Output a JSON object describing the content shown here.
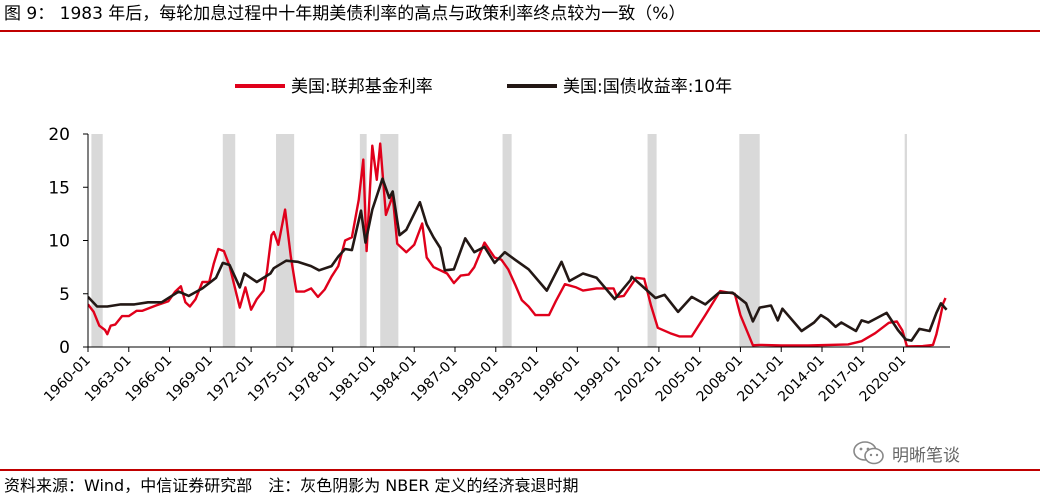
{
  "figure": {
    "title": "图 9： 1983 年后，每轮加息过程中十年期美债利率的高点与政策利率终点较为一致（%）",
    "source": "资料来源：Wind，中信证券研究部　注：灰色阴影为 NBER 定义的经济衰退时期",
    "watermark": "明晰笔谈"
  },
  "colors": {
    "rule": "#c00000",
    "fed": "#e0001b",
    "ust": "#231815",
    "recession": "#d9d9d9"
  },
  "chart_data": {
    "type": "line",
    "ylim": [
      0,
      20
    ],
    "yticks": [
      "0",
      "5",
      "10",
      "15",
      "20"
    ],
    "xlim": [
      "1960-01",
      "2023-06"
    ],
    "xticks": [
      "1960-01",
      "1963-01",
      "1966-01",
      "1969-01",
      "1972-01",
      "1975-01",
      "1978-01",
      "1981-01",
      "1984-01",
      "1987-01",
      "1990-01",
      "1993-01",
      "1996-01",
      "1999-01",
      "2002-01",
      "2005-01",
      "2008-01",
      "2011-01",
      "2014-01",
      "2017-01",
      "2020-01"
    ],
    "legend_position": "top",
    "grid": false,
    "recessions": [
      {
        "start": "1960-04",
        "end": "1961-02"
      },
      {
        "start": "1969-12",
        "end": "1970-11"
      },
      {
        "start": "1973-11",
        "end": "1975-03"
      },
      {
        "start": "1980-01",
        "end": "1980-07"
      },
      {
        "start": "1981-07",
        "end": "1982-11"
      },
      {
        "start": "1990-07",
        "end": "1991-03"
      },
      {
        "start": "2001-03",
        "end": "2001-11"
      },
      {
        "start": "2007-12",
        "end": "2009-06"
      },
      {
        "start": "2020-02",
        "end": "2020-04"
      }
    ],
    "series": [
      {
        "name": "美国:联邦基金利率",
        "points": [
          [
            "1960-01",
            4.0
          ],
          [
            "1960-06",
            3.3
          ],
          [
            "1960-11",
            2.0
          ],
          [
            "1961-04",
            1.6
          ],
          [
            "1961-06",
            1.2
          ],
          [
            "1961-09",
            2.0
          ],
          [
            "1962-01",
            2.1
          ],
          [
            "1962-07",
            2.9
          ],
          [
            "1963-01",
            2.9
          ],
          [
            "1963-08",
            3.4
          ],
          [
            "1964-01",
            3.4
          ],
          [
            "1965-01",
            3.9
          ],
          [
            "1965-12",
            4.3
          ],
          [
            "1966-06",
            5.2
          ],
          [
            "1966-11",
            5.7
          ],
          [
            "1967-03",
            4.2
          ],
          [
            "1967-07",
            3.8
          ],
          [
            "1967-12",
            4.5
          ],
          [
            "1968-06",
            6.1
          ],
          [
            "1968-12",
            6.1
          ],
          [
            "1969-04",
            7.8
          ],
          [
            "1969-08",
            9.2
          ],
          [
            "1970-01",
            9.0
          ],
          [
            "1970-06",
            7.6
          ],
          [
            "1970-12",
            5.0
          ],
          [
            "1971-03",
            3.7
          ],
          [
            "1971-08",
            5.6
          ],
          [
            "1972-01",
            3.5
          ],
          [
            "1972-06",
            4.5
          ],
          [
            "1972-12",
            5.3
          ],
          [
            "1973-03",
            7.1
          ],
          [
            "1973-07",
            10.5
          ],
          [
            "1973-09",
            10.8
          ],
          [
            "1974-01",
            9.6
          ],
          [
            "1974-07",
            12.9
          ],
          [
            "1974-12",
            8.5
          ],
          [
            "1975-05",
            5.2
          ],
          [
            "1975-12",
            5.2
          ],
          [
            "1976-06",
            5.5
          ],
          [
            "1976-12",
            4.7
          ],
          [
            "1977-06",
            5.4
          ],
          [
            "1977-12",
            6.6
          ],
          [
            "1978-06",
            7.6
          ],
          [
            "1978-12",
            10.0
          ],
          [
            "1979-06",
            10.3
          ],
          [
            "1979-12",
            13.8
          ],
          [
            "1980-04",
            17.6
          ],
          [
            "1980-07",
            9.0
          ],
          [
            "1980-12",
            18.9
          ],
          [
            "1981-04",
            15.7
          ],
          [
            "1981-07",
            19.1
          ],
          [
            "1981-12",
            12.4
          ],
          [
            "1982-06",
            14.2
          ],
          [
            "1982-10",
            9.7
          ],
          [
            "1983-06",
            8.9
          ],
          [
            "1984-01",
            9.6
          ],
          [
            "1984-08",
            11.6
          ],
          [
            "1984-12",
            8.4
          ],
          [
            "1985-06",
            7.5
          ],
          [
            "1986-06",
            6.9
          ],
          [
            "1986-12",
            6.0
          ],
          [
            "1987-06",
            6.7
          ],
          [
            "1988-01",
            6.8
          ],
          [
            "1988-06",
            7.5
          ],
          [
            "1989-03",
            9.8
          ],
          [
            "1989-12",
            8.4
          ],
          [
            "1990-06",
            8.2
          ],
          [
            "1990-12",
            7.3
          ],
          [
            "1991-06",
            5.9
          ],
          [
            "1991-12",
            4.4
          ],
          [
            "1992-06",
            3.8
          ],
          [
            "1992-12",
            3.0
          ],
          [
            "1993-12",
            3.0
          ],
          [
            "1994-06",
            4.3
          ],
          [
            "1995-02",
            5.9
          ],
          [
            "1995-12",
            5.6
          ],
          [
            "1996-06",
            5.3
          ],
          [
            "1997-06",
            5.5
          ],
          [
            "1998-09",
            5.5
          ],
          [
            "1998-12",
            4.7
          ],
          [
            "1999-06",
            4.8
          ],
          [
            "2000-05",
            6.5
          ],
          [
            "2000-12",
            6.4
          ],
          [
            "2001-06",
            3.9
          ],
          [
            "2001-12",
            1.8
          ],
          [
            "2002-11",
            1.3
          ],
          [
            "2003-07",
            1.0
          ],
          [
            "2004-06",
            1.0
          ],
          [
            "2005-06",
            3.0
          ],
          [
            "2006-07",
            5.25
          ],
          [
            "2007-08",
            5.0
          ],
          [
            "2008-01",
            3.0
          ],
          [
            "2008-12",
            0.16
          ],
          [
            "2009-06",
            0.2
          ],
          [
            "2011-01",
            0.15
          ],
          [
            "2013-01",
            0.14
          ],
          [
            "2015-12",
            0.24
          ],
          [
            "2016-12",
            0.54
          ],
          [
            "2017-12",
            1.3
          ],
          [
            "2018-12",
            2.27
          ],
          [
            "2019-07",
            2.4
          ],
          [
            "2019-12",
            1.55
          ],
          [
            "2020-04",
            0.05
          ],
          [
            "2021-06",
            0.08
          ],
          [
            "2022-03",
            0.2
          ],
          [
            "2022-06",
            1.2
          ],
          [
            "2022-09",
            2.6
          ],
          [
            "2022-12",
            4.1
          ],
          [
            "2023-02",
            4.6
          ]
        ]
      },
      {
        "name": "美国:国债收益率:10年",
        "points": [
          [
            "1960-01",
            4.7
          ],
          [
            "1960-09",
            3.8
          ],
          [
            "1961-06",
            3.8
          ],
          [
            "1962-06",
            4.0
          ],
          [
            "1963-06",
            4.0
          ],
          [
            "1964-06",
            4.2
          ],
          [
            "1965-06",
            4.2
          ],
          [
            "1966-09",
            5.2
          ],
          [
            "1967-06",
            4.8
          ],
          [
            "1968-06",
            5.5
          ],
          [
            "1969-06",
            6.5
          ],
          [
            "1969-12",
            7.9
          ],
          [
            "1970-06",
            7.7
          ],
          [
            "1971-03",
            5.6
          ],
          [
            "1971-07",
            6.9
          ],
          [
            "1972-06",
            6.1
          ],
          [
            "1973-06",
            6.9
          ],
          [
            "1973-09",
            7.4
          ],
          [
            "1974-08",
            8.1
          ],
          [
            "1975-06",
            8.0
          ],
          [
            "1976-06",
            7.6
          ],
          [
            "1977-01",
            7.2
          ],
          [
            "1977-12",
            7.6
          ],
          [
            "1978-06",
            8.5
          ],
          [
            "1978-12",
            9.2
          ],
          [
            "1979-06",
            9.1
          ],
          [
            "1980-02",
            12.8
          ],
          [
            "1980-06",
            9.8
          ],
          [
            "1980-12",
            12.9
          ],
          [
            "1981-09",
            15.8
          ],
          [
            "1982-03",
            14.0
          ],
          [
            "1982-06",
            14.6
          ],
          [
            "1982-12",
            10.5
          ],
          [
            "1983-06",
            11.0
          ],
          [
            "1984-06",
            13.6
          ],
          [
            "1984-12",
            11.5
          ],
          [
            "1985-06",
            10.3
          ],
          [
            "1985-12",
            9.3
          ],
          [
            "1986-04",
            7.2
          ],
          [
            "1986-12",
            7.3
          ],
          [
            "1987-10",
            10.2
          ],
          [
            "1988-06",
            8.9
          ],
          [
            "1989-03",
            9.4
          ],
          [
            "1989-12",
            7.9
          ],
          [
            "1990-09",
            8.9
          ],
          [
            "1991-06",
            8.2
          ],
          [
            "1992-06",
            7.3
          ],
          [
            "1993-10",
            5.3
          ],
          [
            "1994-11",
            8.0
          ],
          [
            "1995-06",
            6.2
          ],
          [
            "1996-06",
            6.9
          ],
          [
            "1997-06",
            6.5
          ],
          [
            "1998-10",
            4.5
          ],
          [
            "1999-12",
            6.3
          ],
          [
            "2000-01",
            6.6
          ],
          [
            "2001-10",
            4.6
          ],
          [
            "2002-06",
            4.9
          ],
          [
            "2003-06",
            3.3
          ],
          [
            "2004-06",
            4.7
          ],
          [
            "2005-06",
            4.0
          ],
          [
            "2006-06",
            5.1
          ],
          [
            "2007-06",
            5.1
          ],
          [
            "2008-06",
            4.1
          ],
          [
            "2008-12",
            2.4
          ],
          [
            "2009-06",
            3.7
          ],
          [
            "2010-04",
            3.9
          ],
          [
            "2010-10",
            2.5
          ],
          [
            "2011-02",
            3.6
          ],
          [
            "2012-07",
            1.5
          ],
          [
            "2013-06",
            2.3
          ],
          [
            "2013-12",
            3.0
          ],
          [
            "2014-06",
            2.6
          ],
          [
            "2015-01",
            1.9
          ],
          [
            "2015-06",
            2.3
          ],
          [
            "2016-07",
            1.5
          ],
          [
            "2016-12",
            2.5
          ],
          [
            "2017-06",
            2.3
          ],
          [
            "2018-10",
            3.2
          ],
          [
            "2019-08",
            1.6
          ],
          [
            "2020-03",
            0.7
          ],
          [
            "2020-08",
            0.6
          ],
          [
            "2021-03",
            1.7
          ],
          [
            "2021-12",
            1.5
          ],
          [
            "2022-06",
            3.2
          ],
          [
            "2022-10",
            4.1
          ],
          [
            "2023-03",
            3.5
          ]
        ]
      }
    ]
  }
}
